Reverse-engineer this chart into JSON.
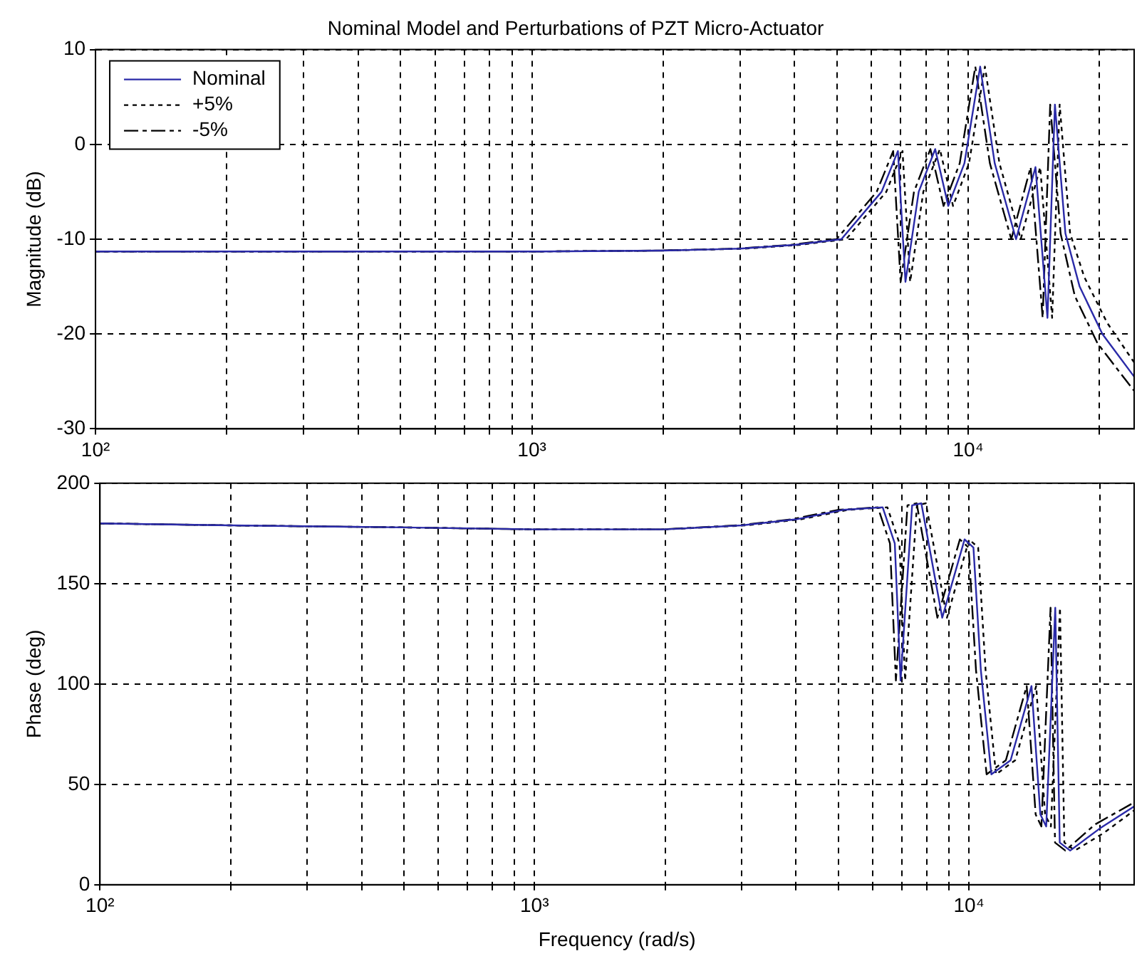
{
  "chart_data": [
    {
      "type": "line",
      "title": "Nominal Model and Perturbations of PZT Micro-Actuator",
      "ylabel": "Magnitude (dB)",
      "log": "x",
      "grid": true,
      "legend": "top left",
      "xlim": [
        100,
        24000
      ],
      "xticks": [
        {
          "value": 100,
          "label": "10²"
        },
        {
          "value": 200,
          "label": null
        },
        {
          "value": 300,
          "label": null
        },
        {
          "value": 400,
          "label": null
        },
        {
          "value": 500,
          "label": null
        },
        {
          "value": 600,
          "label": null
        },
        {
          "value": 700,
          "label": null
        },
        {
          "value": 800,
          "label": null
        },
        {
          "value": 900,
          "label": null
        },
        {
          "value": 1000,
          "label": "10³"
        },
        {
          "value": 2000,
          "label": null
        },
        {
          "value": 3000,
          "label": null
        },
        {
          "value": 4000,
          "label": null
        },
        {
          "value": 5000,
          "label": null
        },
        {
          "value": 6000,
          "label": null
        },
        {
          "value": 7000,
          "label": null
        },
        {
          "value": 8000,
          "label": null
        },
        {
          "value": 9000,
          "label": null
        },
        {
          "value": 10000,
          "label": "10⁴"
        },
        {
          "value": 20000,
          "label": null
        }
      ],
      "ylim": [
        -30,
        10
      ],
      "yticks": [
        -30,
        -20,
        -10,
        0,
        10
      ],
      "series": [
        {
          "name": "Nominal",
          "color": "#2a2aa8",
          "line_style": "solid",
          "x": [
            100,
            200,
            500,
            1000,
            2000,
            3000,
            4000,
            5120,
            6330,
            6900,
            7180,
            7700,
            8400,
            9000,
            9800,
            10650,
            11500,
            12870,
            14260,
            15190,
            15800,
            16700,
            18000,
            20300,
            24000
          ],
          "values": [
            -11.3,
            -11.3,
            -11.3,
            -11.3,
            -11.2,
            -11,
            -10.6,
            -10,
            -5,
            -0.7,
            -14.5,
            -5,
            -0.5,
            -6.5,
            -2,
            8.2,
            -2,
            -10,
            -2.4,
            -18.3,
            4.2,
            -9.4,
            -15,
            -20,
            -24.5
          ]
        },
        {
          "name": "+5%",
          "color": "#000000",
          "line_style": "dotted",
          "x": [
            100,
            200,
            500,
            1000,
            2000,
            3080,
            4100,
            5250,
            6490,
            7070,
            7360,
            7890,
            8610,
            9230,
            10040,
            10920,
            11790,
            13190,
            14620,
            15570,
            16200,
            17120,
            18450,
            20800,
            24000
          ],
          "values": [
            -11.3,
            -11.3,
            -11.3,
            -11.3,
            -11.2,
            -11,
            -10.6,
            -10,
            -5,
            -0.7,
            -14.5,
            -5,
            -0.5,
            -6.5,
            -2,
            8.2,
            -2,
            -10,
            -2.4,
            -18.3,
            4.2,
            -9.4,
            -14,
            -18.8,
            -23
          ]
        },
        {
          "name": "-5%",
          "color": "#000000",
          "line_style": "dashed",
          "x": [
            100,
            200,
            500,
            1000,
            1950,
            2930,
            3900,
            4990,
            6170,
            6730,
            7000,
            7510,
            8190,
            8780,
            9560,
            10380,
            11210,
            12550,
            13900,
            14810,
            15410,
            16280,
            17550,
            19790,
            24000
          ],
          "values": [
            -11.3,
            -11.3,
            -11.3,
            -11.3,
            -11.2,
            -11,
            -10.6,
            -10,
            -5,
            -0.7,
            -14.5,
            -5,
            -0.5,
            -6.5,
            -2,
            8.2,
            -2,
            -10,
            -2.4,
            -18.3,
            4.2,
            -9.4,
            -16,
            -21,
            -26
          ]
        }
      ]
    },
    {
      "type": "line",
      "xlabel": "Frequency (rad/s)",
      "ylabel": "Phase (deg)",
      "log": "x",
      "grid": true,
      "xlim": [
        100,
        24000
      ],
      "xticks": [
        {
          "value": 100,
          "label": "10²"
        },
        {
          "value": 200,
          "label": null
        },
        {
          "value": 300,
          "label": null
        },
        {
          "value": 400,
          "label": null
        },
        {
          "value": 500,
          "label": null
        },
        {
          "value": 600,
          "label": null
        },
        {
          "value": 700,
          "label": null
        },
        {
          "value": 800,
          "label": null
        },
        {
          "value": 900,
          "label": null
        },
        {
          "value": 1000,
          "label": "10³"
        },
        {
          "value": 2000,
          "label": null
        },
        {
          "value": 3000,
          "label": null
        },
        {
          "value": 4000,
          "label": null
        },
        {
          "value": 5000,
          "label": null
        },
        {
          "value": 6000,
          "label": null
        },
        {
          "value": 7000,
          "label": null
        },
        {
          "value": 8000,
          "label": null
        },
        {
          "value": 9000,
          "label": null
        },
        {
          "value": 10000,
          "label": "10⁴"
        },
        {
          "value": 20000,
          "label": null
        }
      ],
      "ylim": [
        0,
        200
      ],
      "yticks": [
        0,
        50,
        100,
        150,
        200
      ],
      "series": [
        {
          "color": "#2a2aa8",
          "line_style": "solid",
          "x": [
            100,
            200,
            500,
            1000,
            2000,
            3000,
            4000,
            5120,
            6330,
            6750,
            6960,
            7400,
            7770,
            8680,
            9770,
            10240,
            10650,
            11260,
            12470,
            13930,
            14600,
            15060,
            15800,
            16180,
            17100,
            20000,
            24000
          ],
          "values": [
            180,
            179,
            178,
            177,
            177,
            179,
            182,
            186.7,
            188,
            170,
            101.7,
            189,
            190,
            133,
            172,
            168,
            107,
            55,
            62,
            99,
            35,
            29,
            138,
            21,
            17,
            28,
            39
          ]
        },
        {
          "color": "#000000",
          "line_style": "dotted",
          "x": [
            100,
            200,
            500,
            1000,
            2000,
            3080,
            4100,
            5250,
            6490,
            6920,
            7130,
            7590,
            7960,
            8900,
            10010,
            10500,
            10920,
            11540,
            12780,
            14280,
            14970,
            15440,
            16200,
            16580,
            17530,
            20500,
            24000
          ],
          "values": [
            180,
            179,
            178,
            177,
            177,
            179,
            182,
            186.7,
            188,
            170,
            101.7,
            189,
            190,
            133,
            172,
            168,
            107,
            55,
            62,
            99,
            35,
            29,
            138,
            21,
            17,
            26,
            37
          ]
        },
        {
          "color": "#000000",
          "line_style": "dashed",
          "x": [
            100,
            200,
            500,
            1000,
            1950,
            2930,
            3900,
            4990,
            6170,
            6580,
            6790,
            7220,
            7580,
            8460,
            9530,
            9980,
            10380,
            10980,
            12160,
            13580,
            14240,
            14680,
            15410,
            15780,
            16670,
            19500,
            24000
          ],
          "values": [
            180,
            179,
            178,
            177,
            177,
            179,
            182,
            186.7,
            188,
            170,
            101.7,
            189,
            190,
            133,
            172,
            168,
            107,
            55,
            62,
            99,
            35,
            29,
            138,
            21,
            17,
            30,
            41
          ]
        }
      ]
    }
  ]
}
